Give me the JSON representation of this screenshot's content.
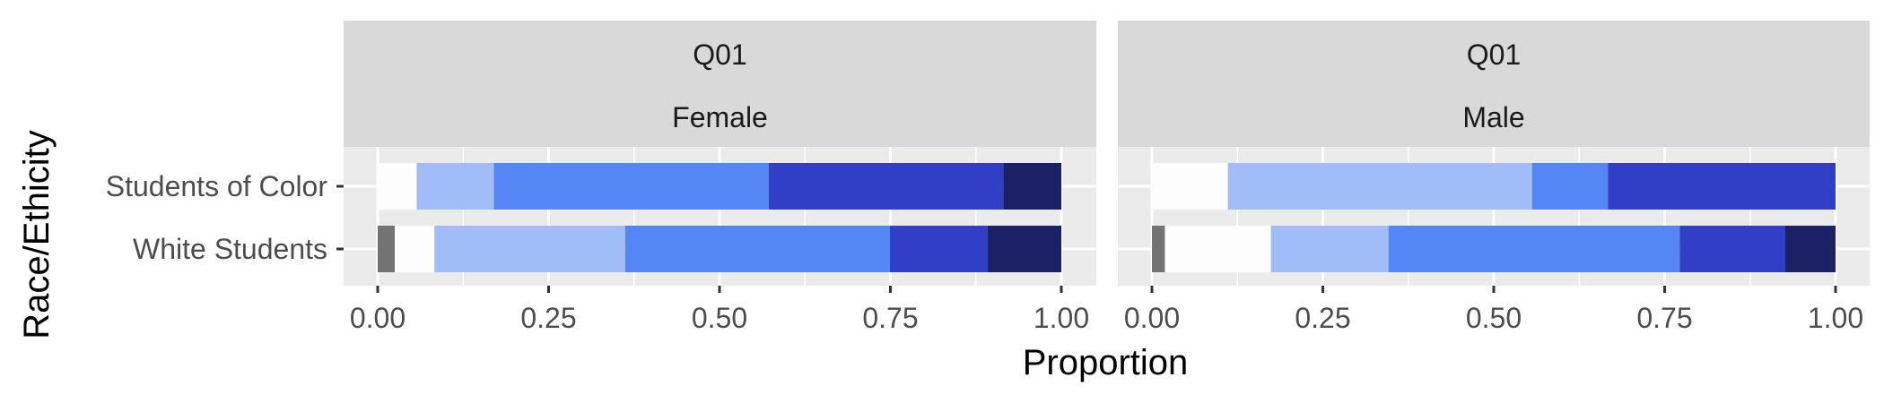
{
  "chart_data": {
    "type": "bar",
    "stacked": true,
    "orientation": "horizontal",
    "xlabel": "Proportion",
    "ylabel": "Race/Ethicity",
    "xlim": [
      0,
      1
    ],
    "x_ticks": [
      "0.00",
      "0.25",
      "0.50",
      "0.75",
      "1.00"
    ],
    "categories": [
      "Students of Color",
      "White Students"
    ],
    "segment_colors": [
      "#737373",
      "#fdfdfd",
      "#a0bdf7",
      "#5487f5",
      "#303fc6",
      "#1c2166"
    ],
    "panels": [
      {
        "strip_top": "Q01",
        "strip_bottom": "Female",
        "rows": [
          {
            "category": "Students of Color",
            "segments": [
              0.0,
              0.057,
              0.113,
              0.402,
              0.343,
              0.085
            ]
          },
          {
            "category": "White Students",
            "segments": [
              0.025,
              0.058,
              0.279,
              0.387,
              0.143,
              0.108
            ]
          }
        ]
      },
      {
        "strip_top": "Q01",
        "strip_bottom": "Male",
        "rows": [
          {
            "category": "Students of Color",
            "segments": [
              0.0,
              0.111,
              0.445,
              0.111,
              0.333,
              0.0
            ]
          },
          {
            "category": "White Students",
            "segments": [
              0.019,
              0.155,
              0.172,
              0.426,
              0.154,
              0.074
            ]
          }
        ]
      }
    ]
  }
}
